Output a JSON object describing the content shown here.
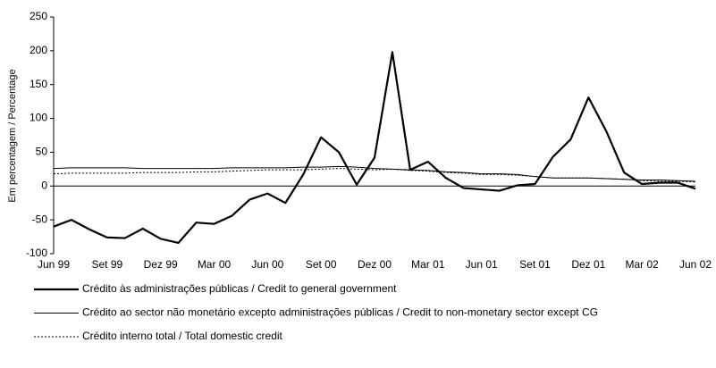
{
  "chart_data": {
    "type": "line",
    "y_label": "Em percentagem / Percentage",
    "categories": [
      "Jun 99",
      null,
      null,
      "Set 99",
      null,
      null,
      "Dez 99",
      null,
      null,
      "Mar 00",
      null,
      null,
      "Jun 00",
      null,
      null,
      "Set 00",
      null,
      null,
      "Dez 00",
      null,
      null,
      "Mar 01",
      null,
      null,
      "Jun 01",
      null,
      null,
      "Set 01",
      null,
      null,
      "Dez 01",
      null,
      null,
      "Mar 02",
      null,
      null,
      "Jun 02"
    ],
    "series": [
      {
        "name": "Crédito às administrações públicas / Credit to general government",
        "color": "#000000",
        "line_width": 2.2,
        "line_style": "solid",
        "values": [
          -60,
          -50,
          -64,
          -76,
          -77,
          -63,
          -78,
          -84,
          -54,
          -56,
          -44,
          -20,
          -11,
          -25,
          17,
          72,
          50,
          2,
          42,
          198,
          24,
          36,
          12,
          -3,
          -5,
          -7,
          1,
          3,
          43,
          69,
          131,
          81,
          20,
          3,
          5,
          5,
          -4
        ]
      },
      {
        "name": "Crédito ao sector não monetário excepto administrações públicas / Credit to non-monetary sector except CG",
        "color": "#000000",
        "line_width": 1,
        "line_style": "solid",
        "values": [
          26,
          27,
          27,
          27,
          27,
          26,
          26,
          26,
          26,
          26,
          27,
          27,
          27,
          27,
          28,
          28,
          29,
          28,
          26,
          25,
          24,
          23,
          21,
          20,
          18,
          18,
          17,
          14,
          12,
          12,
          12,
          11,
          10,
          9,
          9,
          8,
          7
        ]
      },
      {
        "name": "Crédito interno total / Total domestic credit",
        "color": "#000000",
        "line_width": 1,
        "line_style": "dotted",
        "values": [
          18,
          19,
          19,
          19,
          19,
          20,
          20,
          20,
          21,
          21,
          22,
          23,
          24,
          24,
          24,
          25,
          26,
          25,
          24,
          25,
          23,
          22,
          20,
          19,
          17,
          17,
          16,
          14,
          12,
          12,
          12,
          11,
          10,
          8,
          7,
          7,
          6
        ]
      }
    ],
    "ylim": [
      -100,
      250
    ],
    "yticks": [
      -100,
      -50,
      0,
      50,
      100,
      150,
      200,
      250
    ],
    "legend": "bottom"
  }
}
